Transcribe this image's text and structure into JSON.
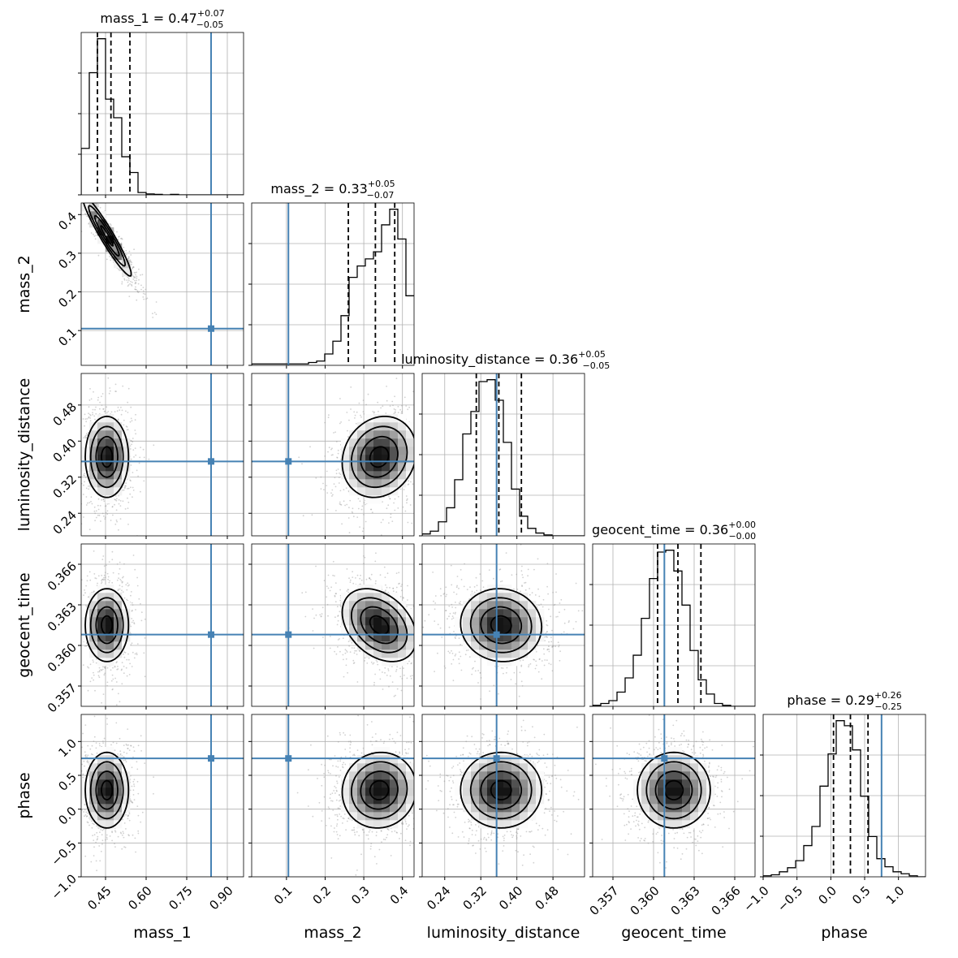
{
  "chart_data": {
    "type": "corner",
    "parameters": [
      "mass_1",
      "mass_2",
      "luminosity_distance",
      "geocent_time",
      "phase"
    ],
    "truth_color": "#4682b4",
    "hist_color": "#000000",
    "grid": true,
    "truths": {
      "mass_1": 0.84,
      "mass_2": 0.105,
      "luminosity_distance": 0.355,
      "geocent_time": 0.3608,
      "phase": 0.75
    },
    "ranges": {
      "mass_1": [
        0.36,
        0.96
      ],
      "mass_2": [
        0.01,
        0.43
      ],
      "luminosity_distance": [
        0.19,
        0.55
      ],
      "geocent_time": [
        0.3555,
        0.3675
      ],
      "phase": [
        -1.0,
        1.4
      ]
    },
    "ticks": {
      "mass_1": {
        "values": [
          0.45,
          0.6,
          0.75,
          0.9
        ],
        "labels": [
          "0.45",
          "0.60",
          "0.75",
          "0.90"
        ]
      },
      "mass_2": {
        "values": [
          0.1,
          0.2,
          0.3,
          0.4
        ],
        "labels": [
          "0.1",
          "0.2",
          "0.3",
          "0.4"
        ]
      },
      "luminosity_distance": {
        "values": [
          0.24,
          0.32,
          0.4,
          0.48
        ],
        "labels": [
          "0.24",
          "0.32",
          "0.40",
          "0.48"
        ]
      },
      "geocent_time": {
        "values": [
          0.357,
          0.36,
          0.363,
          0.366
        ],
        "labels": [
          "0.357",
          "0.360",
          "0.363",
          "0.366"
        ]
      },
      "phase": {
        "values": [
          -1.0,
          -0.5,
          0.0,
          0.5,
          1.0
        ],
        "labels": [
          "−1.0",
          "−0.5",
          "0.0",
          "0.5",
          "1.0"
        ]
      }
    },
    "axis_labels": {
      "mass_1": "mass_1",
      "mass_2": "mass_2",
      "luminosity_distance": "luminosity_distance",
      "geocent_time": "geocent_time",
      "phase": "phase"
    },
    "titles": {
      "mass_1": {
        "main": "mass_1 = 0.47",
        "plus": "+0.07",
        "minus": "−0.05"
      },
      "mass_2": {
        "main": "mass_2 = 0.33",
        "plus": "+0.05",
        "minus": "−0.07"
      },
      "luminosity_distance": {
        "main": "luminosity_distance = 0.36",
        "plus": "+0.05",
        "minus": "−0.05"
      },
      "geocent_time": {
        "main": "geocent_time = 0.36",
        "plus": "+0.00",
        "minus": "−0.00"
      },
      "phase": {
        "main": "phase = 0.29",
        "plus": "+0.26",
        "minus": "−0.25"
      }
    },
    "quantiles": {
      "mass_1": [
        0.42,
        0.47,
        0.54
      ],
      "mass_2": [
        0.26,
        0.33,
        0.38
      ],
      "luminosity_distance": [
        0.31,
        0.36,
        0.41
      ],
      "geocent_time": [
        0.3603,
        0.3618,
        0.3635
      ],
      "phase": [
        0.04,
        0.29,
        0.55
      ]
    },
    "histograms": {
      "mass_1": {
        "edges": [
          0.36,
          0.39,
          0.42,
          0.45,
          0.48,
          0.51,
          0.54,
          0.57,
          0.6,
          0.63,
          0.66,
          0.69,
          0.72,
          0.75,
          0.78,
          0.81,
          0.84,
          0.87,
          0.9,
          0.93,
          0.96
        ],
        "counts": [
          100,
          263,
          336,
          206,
          166,
          82,
          48,
          5,
          2,
          1,
          0,
          1,
          0,
          0,
          0,
          0,
          0,
          0,
          0,
          0
        ]
      },
      "mass_2": {
        "edges": [
          0.01,
          0.031,
          0.052,
          0.073,
          0.094,
          0.115,
          0.136,
          0.157,
          0.178,
          0.199,
          0.22,
          0.241,
          0.262,
          0.283,
          0.304,
          0.325,
          0.346,
          0.367,
          0.388,
          0.409,
          0.43
        ],
        "counts": [
          1,
          1,
          1,
          1,
          1,
          1,
          1,
          2,
          3,
          8,
          17,
          35,
          62,
          70,
          75,
          80,
          99,
          110,
          89,
          49
        ]
      },
      "luminosity_distance": {
        "edges": [
          0.19,
          0.208,
          0.226,
          0.244,
          0.262,
          0.28,
          0.298,
          0.316,
          0.334,
          0.352,
          0.37,
          0.388,
          0.406,
          0.424,
          0.442,
          0.46,
          0.478,
          0.496,
          0.514,
          0.532,
          0.55
        ],
        "counts": [
          2,
          5,
          15,
          30,
          60,
          109,
          133,
          165,
          167,
          145,
          100,
          50,
          21,
          8,
          3,
          1,
          0,
          0,
          0,
          0
        ]
      },
      "geocent_time": {
        "edges": [
          0.3555,
          0.3561,
          0.3567,
          0.3573,
          0.3579,
          0.3585,
          0.3591,
          0.3597,
          0.3603,
          0.3609,
          0.3615,
          0.3621,
          0.3627,
          0.3633,
          0.3639,
          0.3645,
          0.3651,
          0.3657,
          0.3663,
          0.3669,
          0.3675
        ],
        "counts": [
          1,
          3,
          6,
          15,
          30,
          54,
          93,
          135,
          163,
          165,
          143,
          107,
          59,
          28,
          13,
          3,
          1,
          0,
          0,
          0
        ]
      },
      "phase": {
        "edges": [
          -1.0,
          -0.88,
          -0.76,
          -0.64,
          -0.52,
          -0.4,
          -0.28,
          -0.16,
          -0.04,
          0.08,
          0.2,
          0.32,
          0.44,
          0.56,
          0.68,
          0.8,
          0.92,
          1.04,
          1.16,
          1.28,
          1.4
        ],
        "counts": [
          1,
          2,
          5,
          9,
          16,
          31,
          50,
          90,
          122,
          155,
          150,
          126,
          80,
          40,
          18,
          10,
          5,
          3,
          1,
          0
        ]
      }
    },
    "densities": {
      "mass_1|mass_2": {
        "mean": [
          0.455,
          0.345
        ],
        "sd": [
          0.045,
          0.052
        ],
        "rho": -0.95
      },
      "mass_1|luminosity_distance": {
        "mean": [
          0.455,
          0.365
        ],
        "sd": [
          0.04,
          0.045
        ],
        "rho": 0.0
      },
      "mass_2|luminosity_distance": {
        "mean": [
          0.34,
          0.365
        ],
        "sd": [
          0.048,
          0.045
        ],
        "rho": 0.15
      },
      "mass_1|geocent_time": {
        "mean": [
          0.455,
          0.3615
        ],
        "sd": [
          0.04,
          0.00135
        ],
        "rho": 0.0
      },
      "mass_2|geocent_time": {
        "mean": [
          0.34,
          0.3615
        ],
        "sd": [
          0.048,
          0.00135
        ],
        "rho": -0.35
      },
      "luminosity_distance|geocent_time": {
        "mean": [
          0.365,
          0.3615
        ],
        "sd": [
          0.045,
          0.00135
        ],
        "rho": -0.05
      },
      "mass_1|phase": {
        "mean": [
          0.455,
          0.28
        ],
        "sd": [
          0.04,
          0.28
        ],
        "rho": 0.0
      },
      "mass_2|phase": {
        "mean": [
          0.34,
          0.28
        ],
        "sd": [
          0.048,
          0.28
        ],
        "rho": 0.05
      },
      "luminosity_distance|phase": {
        "mean": [
          0.365,
          0.28
        ],
        "sd": [
          0.045,
          0.28
        ],
        "rho": 0.0
      },
      "geocent_time|phase": {
        "mean": [
          0.3615,
          0.28
        ],
        "sd": [
          0.00135,
          0.28
        ],
        "rho": 0.0
      }
    }
  }
}
